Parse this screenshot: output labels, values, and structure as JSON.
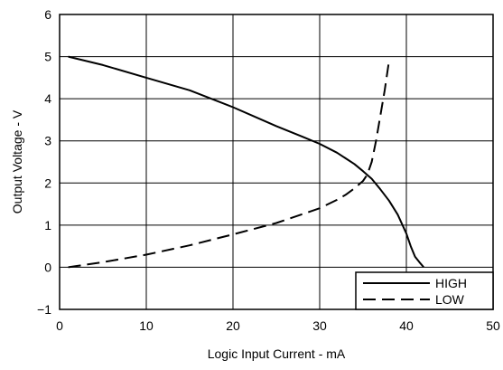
{
  "chart_data": {
    "type": "line",
    "title": "",
    "xlabel": "Logic Input Current - mA",
    "ylabel": "Output Voltage - V",
    "xlim": [
      0,
      50
    ],
    "ylim": [
      -1,
      6
    ],
    "x_ticks": [
      0,
      10,
      20,
      30,
      40,
      50
    ],
    "x_tick_labels": [
      "0",
      "10",
      "20",
      "30",
      "40",
      "50"
    ],
    "y_ticks": [
      -1,
      0,
      1,
      2,
      3,
      4,
      5,
      6
    ],
    "y_tick_labels": [
      "−1",
      "0",
      "1",
      "2",
      "3",
      "4",
      "5",
      "6"
    ],
    "grid": true,
    "legend_position": "bottom-right",
    "series": [
      {
        "name": "HIGH",
        "line_style": "solid",
        "color": "#000000",
        "x": [
          1,
          5,
          10,
          15,
          20,
          25,
          28,
          30,
          32,
          34,
          35,
          36,
          37,
          38,
          39,
          40,
          40.5,
          41,
          41.5,
          42
        ],
        "y": [
          5.0,
          4.8,
          4.5,
          4.2,
          3.8,
          3.35,
          3.1,
          2.93,
          2.72,
          2.45,
          2.28,
          2.1,
          1.85,
          1.58,
          1.25,
          0.8,
          0.5,
          0.25,
          0.12,
          0.0
        ]
      },
      {
        "name": "LOW",
        "line_style": "dashed",
        "color": "#000000",
        "x": [
          1,
          5,
          10,
          15,
          20,
          25,
          30,
          32,
          33,
          34,
          35,
          35.5,
          36,
          36.5,
          37,
          37.5,
          38
        ],
        "y": [
          0.0,
          0.12,
          0.3,
          0.52,
          0.78,
          1.05,
          1.4,
          1.6,
          1.72,
          1.87,
          2.05,
          2.2,
          2.5,
          3.0,
          3.6,
          4.2,
          4.9
        ]
      }
    ]
  }
}
